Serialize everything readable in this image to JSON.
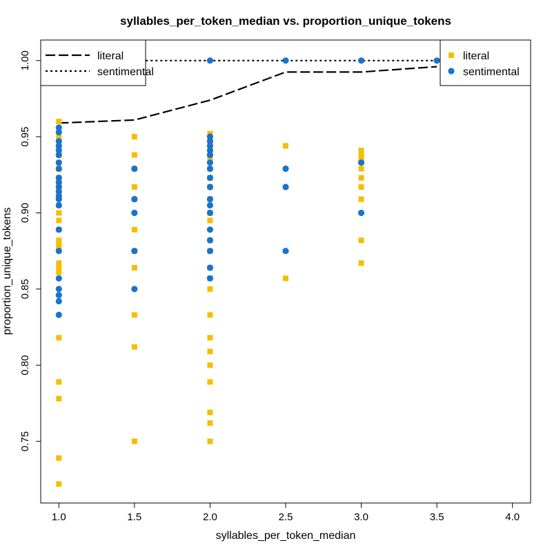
{
  "chart_data": {
    "type": "scatter",
    "title": "syllables_per_token_median vs. proportion_unique_tokens",
    "xlabel": "syllables_per_token_median",
    "ylabel": "proportion_unique_tokens",
    "xlim": [
      0.88,
      4.12
    ],
    "ylim": [
      0.7095,
      1.0135
    ],
    "xticks": [
      "1.0",
      "1.5",
      "2.0",
      "2.5",
      "3.0",
      "3.5",
      "4.0"
    ],
    "yticks": [
      "0.75",
      "0.80",
      "0.85",
      "0.90",
      "0.95",
      "1.00"
    ],
    "grid": false,
    "series": [
      {
        "name": "literal",
        "marker": "square",
        "color": "#F5BE00",
        "points": [
          [
            1.0,
            0.96
          ],
          [
            1.0,
            0.95
          ],
          [
            1.0,
            0.943
          ],
          [
            1.0,
            0.938
          ],
          [
            1.0,
            0.933
          ],
          [
            1.0,
            0.929
          ],
          [
            1.0,
            0.923
          ],
          [
            1.0,
            0.917
          ],
          [
            1.0,
            0.912
          ],
          [
            1.0,
            0.905
          ],
          [
            1.0,
            0.9
          ],
          [
            1.0,
            0.895
          ],
          [
            1.0,
            0.889
          ],
          [
            1.0,
            0.882
          ],
          [
            1.0,
            0.88
          ],
          [
            1.0,
            0.877
          ],
          [
            1.0,
            0.867
          ],
          [
            1.0,
            0.864
          ],
          [
            1.0,
            0.861
          ],
          [
            1.0,
            0.818
          ],
          [
            1.0,
            0.789
          ],
          [
            1.0,
            0.778
          ],
          [
            1.0,
            0.739
          ],
          [
            1.0,
            0.722
          ],
          [
            1.5,
            0.95
          ],
          [
            1.5,
            0.938
          ],
          [
            1.5,
            0.929
          ],
          [
            1.5,
            0.917
          ],
          [
            1.5,
            0.909
          ],
          [
            1.5,
            0.889
          ],
          [
            1.5,
            0.875
          ],
          [
            1.5,
            0.864
          ],
          [
            1.5,
            0.833
          ],
          [
            1.5,
            0.812
          ],
          [
            1.5,
            0.75
          ],
          [
            2.0,
            0.952
          ],
          [
            2.0,
            0.947
          ],
          [
            2.0,
            0.941
          ],
          [
            2.0,
            0.935
          ],
          [
            2.0,
            0.929
          ],
          [
            2.0,
            0.923
          ],
          [
            2.0,
            0.917
          ],
          [
            2.0,
            0.909
          ],
          [
            2.0,
            0.9
          ],
          [
            2.0,
            0.895
          ],
          [
            2.0,
            0.882
          ],
          [
            2.0,
            0.875
          ],
          [
            2.0,
            0.864
          ],
          [
            2.0,
            0.857
          ],
          [
            2.0,
            0.85
          ],
          [
            2.0,
            0.833
          ],
          [
            2.0,
            0.818
          ],
          [
            2.0,
            0.809
          ],
          [
            2.0,
            0.8
          ],
          [
            2.0,
            0.789
          ],
          [
            2.0,
            0.769
          ],
          [
            2.0,
            0.762
          ],
          [
            2.0,
            0.75
          ],
          [
            2.5,
            0.944
          ],
          [
            2.5,
            0.857
          ],
          [
            3.0,
            0.941
          ],
          [
            3.0,
            0.938
          ],
          [
            3.0,
            0.935
          ],
          [
            3.0,
            0.929
          ],
          [
            3.0,
            0.923
          ],
          [
            3.0,
            0.917
          ],
          [
            3.0,
            0.909
          ],
          [
            3.0,
            0.882
          ],
          [
            3.0,
            0.867
          ]
        ]
      },
      {
        "name": "sentimental",
        "marker": "circle",
        "color": "#1874CD",
        "points": [
          [
            1.0,
            0.956
          ],
          [
            1.0,
            0.953
          ],
          [
            1.0,
            0.947
          ],
          [
            1.0,
            0.944
          ],
          [
            1.0,
            0.941
          ],
          [
            1.0,
            0.938
          ],
          [
            1.0,
            0.933
          ],
          [
            1.0,
            0.929
          ],
          [
            1.0,
            0.923
          ],
          [
            1.0,
            0.92
          ],
          [
            1.0,
            0.917
          ],
          [
            1.0,
            0.914
          ],
          [
            1.0,
            0.911
          ],
          [
            1.0,
            0.909
          ],
          [
            1.0,
            0.905
          ],
          [
            1.0,
            0.889
          ],
          [
            1.0,
            0.875
          ],
          [
            1.0,
            0.857
          ],
          [
            1.0,
            0.85
          ],
          [
            1.0,
            0.846
          ],
          [
            1.0,
            0.842
          ],
          [
            1.0,
            0.833
          ],
          [
            1.5,
            0.929
          ],
          [
            1.5,
            0.909
          ],
          [
            1.5,
            0.9
          ],
          [
            1.5,
            0.875
          ],
          [
            1.5,
            0.85
          ],
          [
            2.0,
            1.0
          ],
          [
            2.0,
            0.95
          ],
          [
            2.0,
            0.947
          ],
          [
            2.0,
            0.944
          ],
          [
            2.0,
            0.941
          ],
          [
            2.0,
            0.938
          ],
          [
            2.0,
            0.933
          ],
          [
            2.0,
            0.929
          ],
          [
            2.0,
            0.923
          ],
          [
            2.0,
            0.917
          ],
          [
            2.0,
            0.909
          ],
          [
            2.0,
            0.905
          ],
          [
            2.0,
            0.9
          ],
          [
            2.0,
            0.889
          ],
          [
            2.0,
            0.882
          ],
          [
            2.0,
            0.875
          ],
          [
            2.0,
            0.864
          ],
          [
            2.0,
            0.857
          ],
          [
            2.5,
            1.0
          ],
          [
            2.5,
            0.929
          ],
          [
            2.5,
            0.917
          ],
          [
            2.5,
            0.875
          ],
          [
            3.0,
            1.0
          ],
          [
            3.0,
            0.933
          ],
          [
            3.0,
            0.9
          ],
          [
            3.5,
            1.0
          ]
        ]
      }
    ],
    "lines": [
      {
        "name": "literal",
        "style": "dashed",
        "color": "#000000",
        "points": [
          [
            1.0,
            0.959
          ],
          [
            1.5,
            0.961
          ],
          [
            2.0,
            0.974
          ],
          [
            2.5,
            0.9925
          ],
          [
            3.0,
            0.9925
          ],
          [
            3.5,
            0.996
          ]
        ]
      },
      {
        "name": "sentimental",
        "style": "dotted",
        "color": "#000000",
        "points": [
          [
            1.0,
            1.0
          ],
          [
            1.5,
            1.0
          ],
          [
            2.0,
            1.0
          ],
          [
            2.5,
            1.0
          ],
          [
            3.0,
            1.0
          ],
          [
            3.5,
            1.0
          ]
        ]
      }
    ],
    "legends": [
      {
        "placement": "top-left",
        "entries": [
          {
            "label": "literal",
            "line_style": "dashed"
          },
          {
            "label": "sentimental",
            "line_style": "dotted"
          }
        ]
      },
      {
        "placement": "top-right",
        "entries": [
          {
            "label": "literal",
            "marker": "square",
            "color": "#F5BE00"
          },
          {
            "label": "sentimental",
            "marker": "circle",
            "color": "#1874CD"
          }
        ]
      }
    ]
  }
}
